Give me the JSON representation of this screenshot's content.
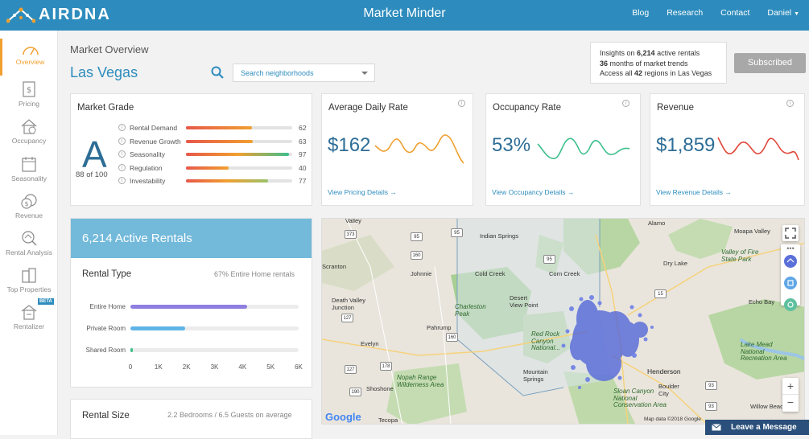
{
  "header": {
    "logo_text": "AIRDNA",
    "app_title": "Market Minder",
    "nav": [
      "Blog",
      "Research",
      "Contact"
    ],
    "user": "Daniel"
  },
  "sidebar": {
    "items": [
      {
        "label": "Overview",
        "icon": "gauge-icon",
        "active": true
      },
      {
        "label": "Pricing",
        "icon": "price-tag-icon"
      },
      {
        "label": "Occupancy",
        "icon": "house-icon"
      },
      {
        "label": "Seasonality",
        "icon": "calendar-icon"
      },
      {
        "label": "Revenue",
        "icon": "coins-icon"
      },
      {
        "label": "Rental Analysis",
        "icon": "magnifier-house-icon"
      },
      {
        "label": "Top Properties",
        "icon": "buildings-icon"
      },
      {
        "label": "Rentalizer",
        "icon": "rentalizer-icon",
        "badge": "BETA"
      }
    ]
  },
  "page": {
    "section_title": "Market Overview",
    "city": "Las Vegas",
    "search_placeholder": "Search neighborhoods"
  },
  "insights": {
    "line1_pre": "Insights on ",
    "line1_bold": "6,214",
    "line1_post": " active rentals",
    "line2_bold": "36",
    "line2_post": " months of market trends",
    "line3_pre": "Access all ",
    "line3_bold": "42",
    "line3_post": " regions in Las Vegas",
    "button": "Subscribed"
  },
  "market_grade": {
    "title": "Market Grade",
    "grade": "A",
    "score_text": "88 of 100",
    "rows": [
      {
        "label": "Rental Demand",
        "value": 62
      },
      {
        "label": "Revenue Growth",
        "value": 63
      },
      {
        "label": "Seasonality",
        "value": 97
      },
      {
        "label": "Regulation",
        "value": 40
      },
      {
        "label": "Investability",
        "value": 77
      }
    ]
  },
  "kpis": [
    {
      "title": "Average Daily Rate",
      "value": "$162",
      "link": "View Pricing Details",
      "color": "#f0a030"
    },
    {
      "title": "Occupancy Rate",
      "value": "53%",
      "link": "View Occupancy Details",
      "color": "#3dbf8c"
    },
    {
      "title": "Revenue",
      "value": "$1,859",
      "link": "View Revenue Details",
      "color": "#e0473a"
    }
  ],
  "active_rentals": {
    "header": "6,214 Active Rentals",
    "title": "Rental Type",
    "subtitle": "67% Entire Home rentals",
    "chart_data": {
      "type": "bar",
      "orientation": "horizontal",
      "categories": [
        "Entire Home",
        "Private Room",
        "Shared Room"
      ],
      "values": [
        4150,
        1950,
        100
      ],
      "colors": [
        "#8e7fe0",
        "#5fb4e6",
        "#3dbf8c"
      ],
      "xlim": [
        0,
        6000
      ],
      "xticks": [
        "0",
        "1K",
        "2K",
        "3K",
        "4K",
        "5K",
        "6K"
      ]
    }
  },
  "rental_size": {
    "title": "Rental Size",
    "subtitle": "2.2 Bedrooms / 6.5 Guests on average"
  },
  "map": {
    "labels": {
      "valley": "Valley",
      "alamo": "Alamo",
      "moapa_valley": "Moapa Valley",
      "indian_springs": "Indian Springs",
      "johnnie": "Johnnie",
      "cold_creek": "Cold Creek",
      "corn_creek": "Corn Creek",
      "dry_lake": "Dry Lake",
      "scranton": "Scranton",
      "valley_of_fire": "Valley of Fire State Park",
      "death_valley_junction": "Death Valley Junction",
      "charleston_peak": "Charleston Peak",
      "desert_view_point": "Desert View Point",
      "echo_bay": "Echo Bay",
      "pahrump": "Pahrump",
      "red_rock": "Red Rock Canyon National...",
      "evelyn": "Evelyn",
      "lake_mead": "Lake Mead National Recreation Area",
      "henderson": "Henderson",
      "mountain_springs": "Mountain Springs",
      "nopah": "Nopah Range Wilderness Area",
      "shoshone": "Shoshone",
      "boulder_city": "Boulder City",
      "sloan": "Sloan Canyon National Conservation Area",
      "willow_beach": "Willow Beach",
      "tecopa": "Tecopa"
    },
    "google": "Google",
    "data_credit": "Map data ©2018 Google",
    "zoom_in": "+",
    "zoom_out": "−"
  },
  "leave_message": "Leave a Message"
}
